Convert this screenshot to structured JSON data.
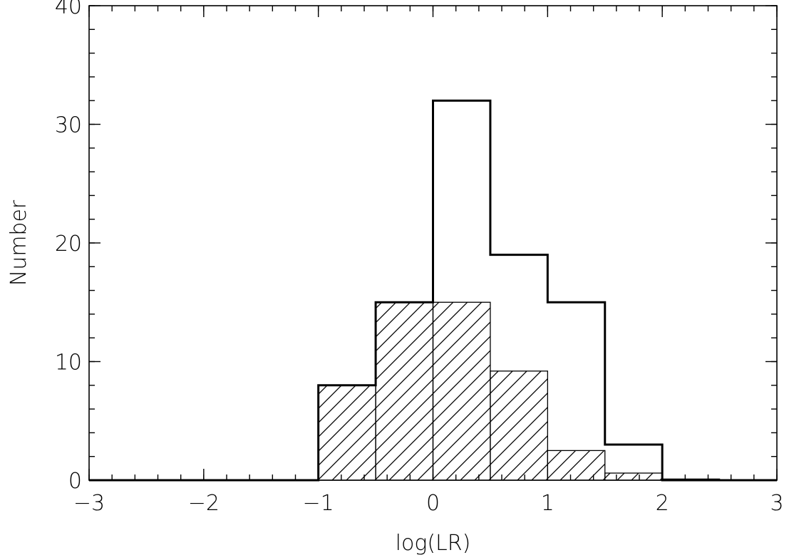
{
  "chart_data": {
    "type": "bar",
    "xlabel": "log(LR)",
    "ylabel": "Number",
    "xlim": [
      -3,
      3
    ],
    "ylim": [
      0,
      40
    ],
    "x_ticks": [
      -3,
      -2,
      -1,
      0,
      1,
      2,
      3
    ],
    "x_tick_labels": [
      "−3",
      "−2",
      "−1",
      "0",
      "1",
      "2",
      "3"
    ],
    "y_ticks": [
      0,
      10,
      20,
      30,
      40
    ],
    "y_tick_labels": [
      "0",
      "10",
      "20",
      "30",
      "40"
    ],
    "bin_edges": [
      -3.0,
      -2.5,
      -2.0,
      -1.5,
      -1.0,
      -0.5,
      0.0,
      0.5,
      1.0,
      1.5,
      2.0,
      2.5,
      3.0
    ],
    "series": [
      {
        "style": "step-outline",
        "values": [
          0,
          0,
          0,
          0,
          8,
          15,
          32,
          19,
          15,
          3,
          0,
          0
        ]
      },
      {
        "style": "hatched",
        "values": [
          0,
          0,
          0,
          0,
          8,
          15,
          15,
          9.2,
          2.5,
          0.6,
          0.1,
          0
        ]
      }
    ],
    "grid": false
  }
}
